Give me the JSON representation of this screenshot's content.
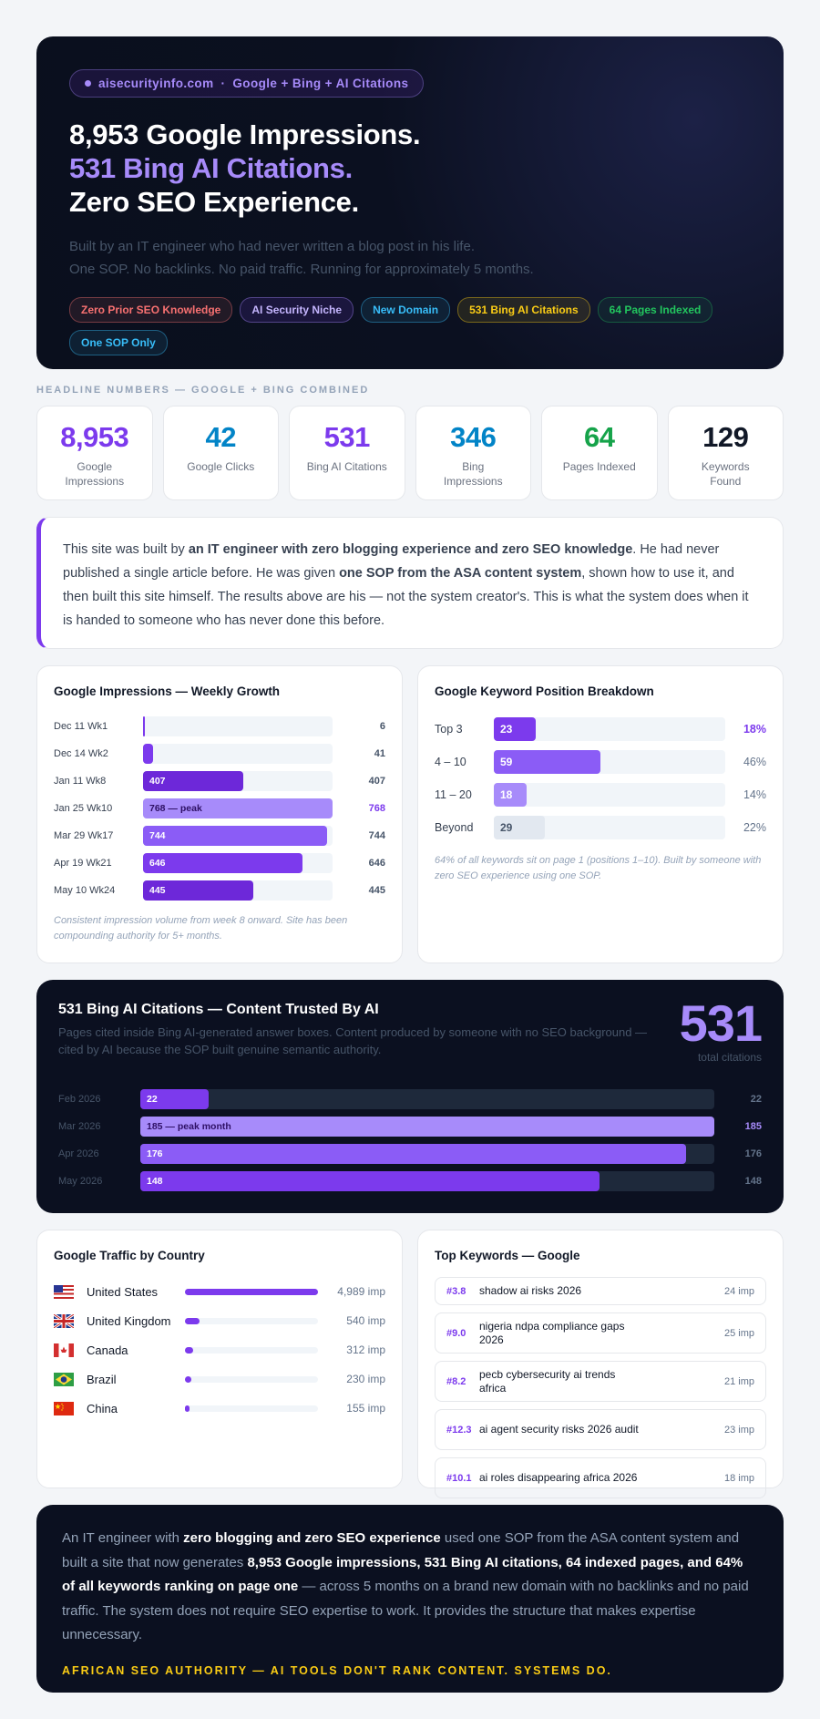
{
  "hero": {
    "badge_domain": "aisecurityinfo.com",
    "badge_separator": "·",
    "badge_text": "Google + Bing + AI Citations",
    "headline": [
      "8,953 Google Impressions.",
      "531 Bing AI Citations.",
      "Zero SEO Experience."
    ],
    "subtitle": [
      "Built by an IT engineer who had never written a blog post in his life.",
      "One SOP. No backlinks. No paid traffic. Running for approximately 5 months."
    ],
    "tags": [
      "Zero Prior SEO Knowledge",
      "AI Security Niche",
      "New Domain",
      "531 Bing AI Citations",
      "64 Pages Indexed",
      "One SOP Only"
    ]
  },
  "headline_numbers": {
    "label": "HEADLINE NUMBERS — GOOGLE + BING COMBINED",
    "stats": [
      {
        "value": "8,953",
        "label": "Google Impressions",
        "color": "#7c3aed"
      },
      {
        "value": "42",
        "label": "Google Clicks",
        "color": "#0284c7"
      },
      {
        "value": "531",
        "label": "Bing AI Citations",
        "color": "#7c3aed"
      },
      {
        "value": "346",
        "label": "Bing Impressions",
        "color": "#0284c7"
      },
      {
        "value": "64",
        "label": "Pages Indexed",
        "color": "#16a34a"
      },
      {
        "value": "129",
        "label": "Keywords Found",
        "color": "#111827"
      }
    ]
  },
  "intro": {
    "parts": [
      "This site was built by ",
      "an IT engineer with zero blogging experience and zero SEO knowledge",
      ". He had never published a single article before. He was given ",
      "one SOP from the ASA content system",
      ", shown how to use it, and then built this site himself. The results above are his — not the system creator's. This is what the system does when it is handed to someone who has never done this before."
    ]
  },
  "weekly": {
    "title": "Google Impressions — Weekly Growth",
    "rows": [
      {
        "label": "Dec 11 Wk1",
        "value": 6,
        "color": "#7c3aed"
      },
      {
        "label": "Dec 14 Wk2",
        "value": 41,
        "color": "#7c3aed"
      },
      {
        "label": "Jan 11 Wk8",
        "value": 407,
        "color": "#6d28d9"
      },
      {
        "label": "Jan 25 Wk10",
        "value": 768,
        "bar_label": "768 — peak",
        "color": "#a78bfa"
      },
      {
        "label": "Mar 29 Wk17",
        "value": 744,
        "color": "#8b5cf6"
      },
      {
        "label": "Apr 19 Wk21",
        "value": 646,
        "color": "#7c3aed"
      },
      {
        "label": "May 10 Wk24",
        "value": 445,
        "color": "#6d28d9"
      }
    ],
    "note": "Consistent impression volume from week 8 onward. Site has been compounding authority for 5+ months."
  },
  "positions": {
    "title": "Google Keyword Position Breakdown",
    "rows": [
      {
        "label": "Top 3",
        "count": 23,
        "percent": {
          "value": 18,
          "label": "18%"
        },
        "color": "#7c3aed"
      },
      {
        "label": "4 – 10",
        "count": 59,
        "percent": {
          "value": 46,
          "label": "46%"
        },
        "color": "#8b5cf6"
      },
      {
        "label": "11 – 20",
        "count": 18,
        "percent": {
          "value": 14,
          "label": "14%"
        },
        "color": "#a78bfa"
      },
      {
        "label": "Beyond",
        "count": 29,
        "percent": {
          "value": 22,
          "label": "22%"
        },
        "color": "#e2e8f0"
      }
    ],
    "note": "64% of all keywords sit on page 1 (positions 1–10). Built by someone with zero SEO experience using one SOP."
  },
  "bing": {
    "title": "531 Bing AI Citations — Content Trusted By AI",
    "subtitle": "Pages cited inside Bing AI-generated answer boxes. Content produced by someone with no SEO background — cited by AI because the SOP built genuine semantic authority.",
    "total": "531",
    "total_label": "total citations",
    "rows": [
      {
        "month": "Feb 2026",
        "value": 22,
        "color": "#7c3aed"
      },
      {
        "month": "Mar 2026",
        "value": 185,
        "bar_label": "185 — peak month",
        "color": "#a78bfa"
      },
      {
        "month": "Apr 2026",
        "value": 176,
        "color": "#8b5cf6"
      },
      {
        "month": "May 2026",
        "value": 148,
        "color": "#7c3aed"
      }
    ]
  },
  "countries": {
    "title": "Google Traffic by Country",
    "rows": [
      {
        "name": "United States",
        "impressions": {
          "value": 4989,
          "label": "4,989 imp"
        }
      },
      {
        "name": "United Kingdom",
        "impressions": {
          "value": 540,
          "label": "540 imp"
        }
      },
      {
        "name": "Canada",
        "impressions": {
          "value": 312,
          "label": "312 imp"
        }
      },
      {
        "name": "Brazil",
        "impressions": {
          "value": 230,
          "label": "230 imp"
        }
      },
      {
        "name": "China",
        "impressions": {
          "value": 155,
          "label": "155 imp"
        }
      }
    ]
  },
  "keywords": {
    "title": "Top Keywords — Google",
    "rows": [
      {
        "position": "#3.8",
        "keyword": "shadow ai risks 2026",
        "impressions": "24 imp"
      },
      {
        "position": "#9.0",
        "keyword": "nigeria ndpa compliance gaps 2026",
        "impressions": "25 imp"
      },
      {
        "position": "#8.2",
        "keyword": "pecb cybersecurity ai trends africa",
        "impressions": "21 imp"
      },
      {
        "position": "#12.3",
        "keyword": "ai agent security risks 2026 audit",
        "impressions": "23 imp"
      },
      {
        "position": "#10.1",
        "keyword": "ai roles disappearing africa 2026",
        "impressions": "18 imp"
      }
    ]
  },
  "closing": {
    "parts": [
      "An IT engineer with ",
      "zero blogging and zero SEO experience",
      " used one SOP from the ASA content system and built a site that now generates ",
      "8,953 Google impressions, 531 Bing AI citations, 64 indexed pages, and 64% of all keywords ranking on page one",
      " — across 5 months on a brand new domain with no backlinks and no paid traffic. The system does not require SEO expertise to work. It provides the structure that makes expertise unnecessary."
    ],
    "tagline": "AFRICAN SEO AUTHORITY — AI TOOLS DON'T RANK CONTENT. SYSTEMS DO."
  }
}
